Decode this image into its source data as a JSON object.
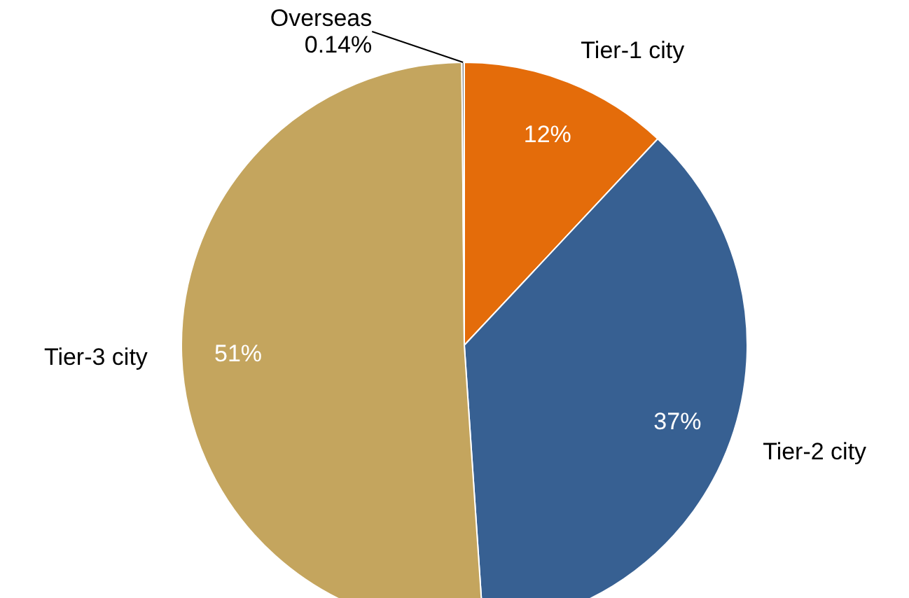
{
  "chart_data": {
    "type": "pie",
    "categories": [
      "Tier-1 city",
      "Tier-2 city",
      "Tier-3 city",
      "Overseas"
    ],
    "values": [
      12,
      37,
      51,
      0.14
    ],
    "colors": [
      "#e46c0a",
      "#376092",
      "#c4a55e",
      "#8c8c8c"
    ],
    "value_labels": [
      "12%",
      "37%",
      "51%",
      "0.14%"
    ]
  }
}
